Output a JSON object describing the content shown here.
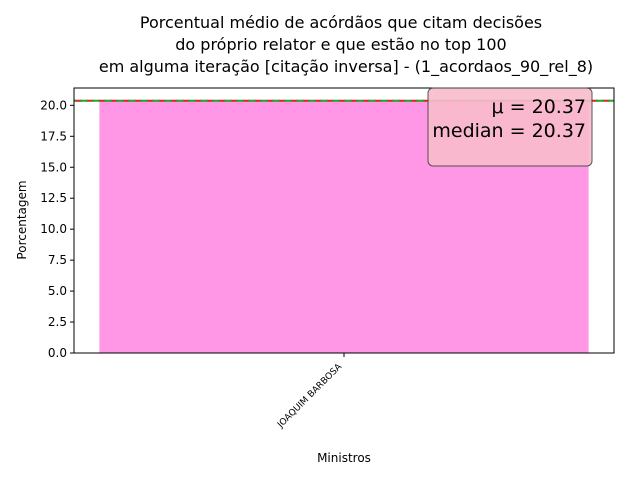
{
  "chart_data": {
    "type": "bar",
    "title": [
      "Porcentual médio de acórdãos que citam decisões",
      "do próprio relator e que estão no top 100",
      "em alguma iteração [citação inversa] - (1_acordaos_90_rel_8)"
    ],
    "xlabel": "Ministros",
    "ylabel": "Porcentagem",
    "categories": [
      "JOAQUIM BARBOSA"
    ],
    "values": [
      20.37
    ],
    "ylim": [
      0,
      21.4
    ],
    "yticks": [
      "0.0",
      "2.5",
      "5.0",
      "7.5",
      "10.0",
      "12.5",
      "15.0",
      "17.5",
      "20.0"
    ],
    "mean": 20.37,
    "median": 20.37,
    "annotation": {
      "mean_text": "μ = 20.37",
      "median_text": "median = 20.37",
      "placement": "top-right"
    },
    "grid": false,
    "colors": {
      "bar": "#ff96e6",
      "mean_line": "#d62728",
      "median_line": "#2ca02c",
      "stats_box": "#f9bccb"
    }
  }
}
